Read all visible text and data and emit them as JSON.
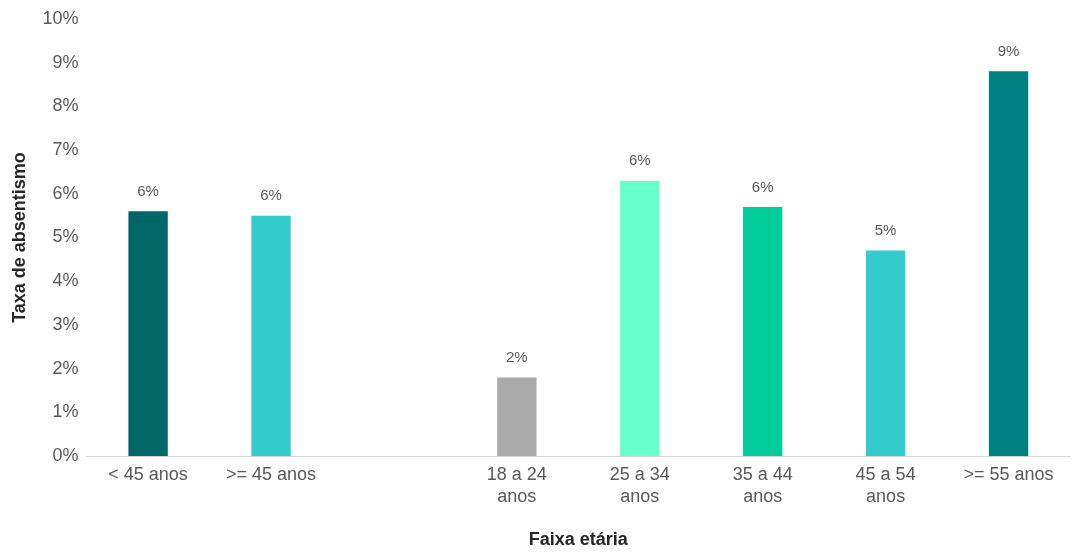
{
  "chart_data": {
    "type": "bar",
    "xlabel": "Faixa etária",
    "ylabel": "Taxa de absentismo",
    "categories": [
      "< 45 anos",
      ">= 45 anos",
      null,
      "18 a 24 anos",
      "25 a 34 anos",
      "35 a 44 anos",
      "45 a 54 anos",
      ">= 55 anos"
    ],
    "values": [
      5.6,
      5.5,
      null,
      1.8,
      6.3,
      5.7,
      4.7,
      8.8
    ],
    "colors": [
      "#006666",
      "#33cccc",
      "#33cccc",
      "#aaaaaa",
      "#66ffcc",
      "#00cc99",
      "#33cccc",
      "#008080"
    ],
    "value_labels": [
      "6%",
      "6%",
      null,
      "2%",
      "6%",
      "6%",
      "5%",
      "9%"
    ],
    "ylim": [
      0,
      10
    ],
    "yticks": [
      {
        "value": 0,
        "label": "0%"
      },
      {
        "value": 1,
        "label": "1%"
      },
      {
        "value": 2,
        "label": "2%"
      },
      {
        "value": 3,
        "label": "3%"
      },
      {
        "value": 4,
        "label": "4%"
      },
      {
        "value": 5,
        "label": "5%"
      },
      {
        "value": 6,
        "label": "6%"
      },
      {
        "value": 7,
        "label": "7%"
      },
      {
        "value": 8,
        "label": "8%"
      },
      {
        "value": 9,
        "label": "9%"
      },
      {
        "value": 10,
        "label": "10%"
      }
    ],
    "grid": false,
    "legend": false
  }
}
